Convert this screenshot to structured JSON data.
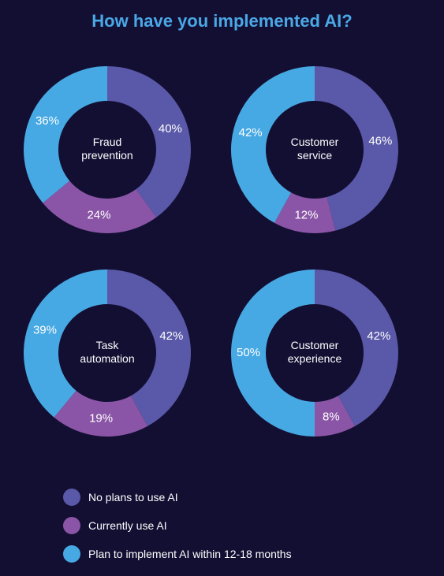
{
  "title": "How have you implemented AI?",
  "colors": {
    "no_plans": "#5a58a8",
    "currently_use": "#8a55a6",
    "plan": "#47a9e3",
    "background": "#130f33"
  },
  "legend": [
    {
      "label": "No plans to use AI",
      "color": "#5a58a8"
    },
    {
      "label": "Currently use AI",
      "color": "#8a55a6"
    },
    {
      "label": "Plan to implement AI within 12-18 months",
      "color": "#47a9e3"
    }
  ],
  "chart_data": [
    {
      "type": "pie",
      "title": "Fraud prevention",
      "center_lines": [
        "Fraud",
        "prevention"
      ],
      "categories": [
        "No plans to use AI",
        "Currently use AI",
        "Plan to implement AI within 12-18 months"
      ],
      "values": [
        40,
        24,
        36
      ],
      "labels": [
        "40%",
        "24%",
        "36%"
      ]
    },
    {
      "type": "pie",
      "title": "Customer service",
      "center_lines": [
        "Customer",
        "service"
      ],
      "categories": [
        "No plans to use AI",
        "Currently use AI",
        "Plan to implement AI within 12-18 months"
      ],
      "values": [
        46,
        12,
        42
      ],
      "labels": [
        "46%",
        "12%",
        "42%"
      ]
    },
    {
      "type": "pie",
      "title": "Task automation",
      "center_lines": [
        "Task",
        "automation"
      ],
      "categories": [
        "No plans to use AI",
        "Currently use AI",
        "Plan to implement AI within 12-18 months"
      ],
      "values": [
        42,
        19,
        39
      ],
      "labels": [
        "42%",
        "19%",
        "39%"
      ]
    },
    {
      "type": "pie",
      "title": "Customer experience",
      "center_lines": [
        "Customer",
        "experience"
      ],
      "categories": [
        "No plans to use AI",
        "Currently use AI",
        "Plan to implement AI within 12-18 months"
      ],
      "values": [
        42,
        8,
        50
      ],
      "labels": [
        "42%",
        "8%",
        "50%"
      ]
    }
  ]
}
